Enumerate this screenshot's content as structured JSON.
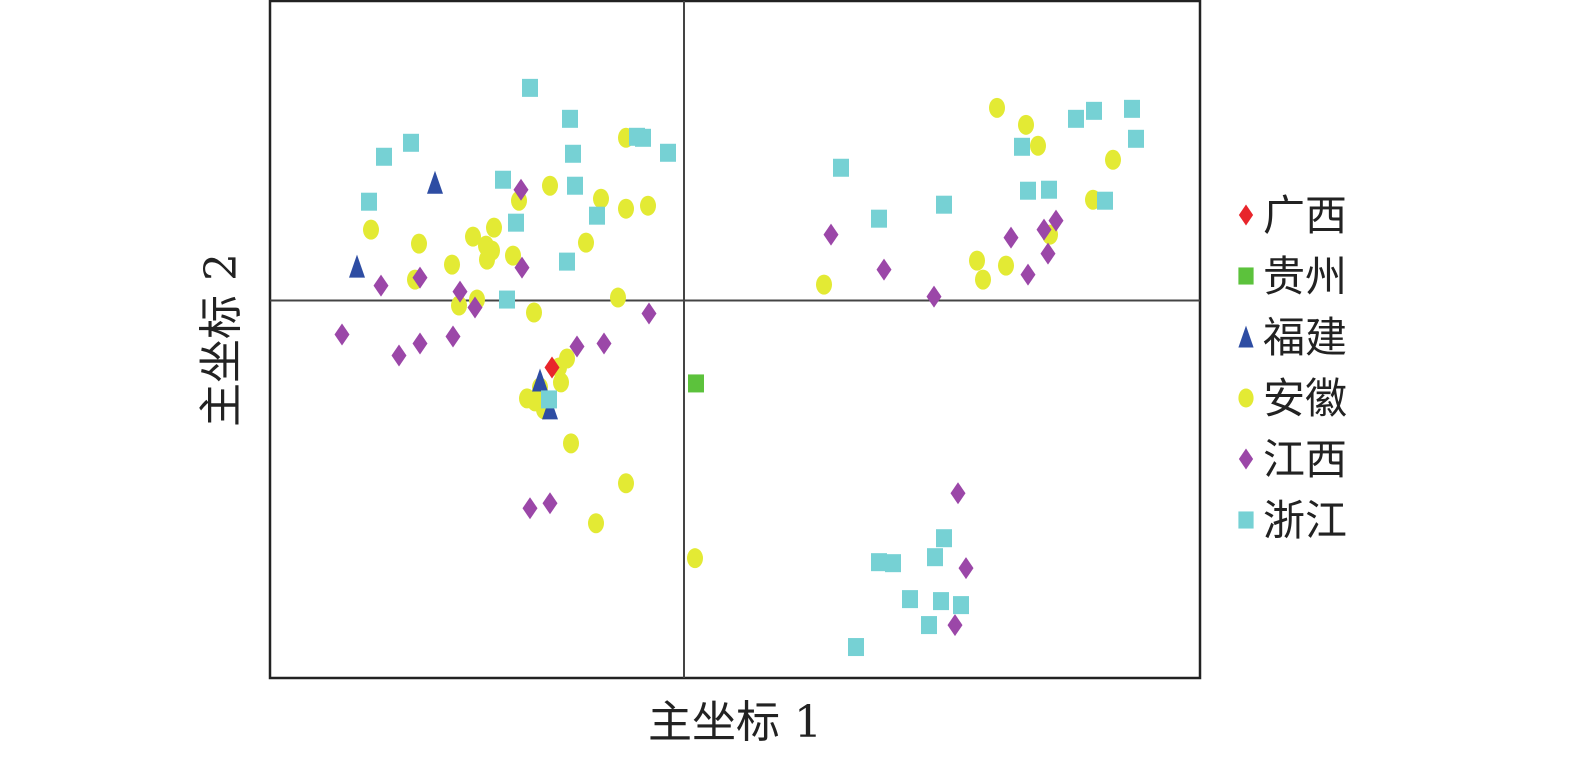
{
  "chart_data": {
    "type": "scatter",
    "title": "",
    "xlabel": "主坐标 1",
    "ylabel": "主坐标 2",
    "xlim": [
      -41.4,
      51.6
    ],
    "ylim": [
      -37.8,
      30
    ],
    "grid": false,
    "zero_lines": true,
    "legend_position": "right",
    "series": [
      {
        "name": "广西",
        "marker": "diamond",
        "color": "#e8252b",
        "points": [
          [
            -13.2,
            -6.7
          ]
        ]
      },
      {
        "name": "贵州",
        "marker": "square",
        "color": "#5cc23c",
        "points": [
          [
            1.2,
            -8.3
          ]
        ]
      },
      {
        "name": "福建",
        "marker": "triangle",
        "color": "#2e4da3",
        "points": [
          [
            -24.9,
            11.8
          ],
          [
            -32.7,
            3.4
          ],
          [
            -14.4,
            -8
          ],
          [
            -13.4,
            -10.8
          ]
        ]
      },
      {
        "name": "安徽",
        "marker": "circle",
        "color": "#e3ea34",
        "points": [
          [
            -31.3,
            7.1
          ],
          [
            -26.5,
            5.7
          ],
          [
            -26.9,
            2.1
          ],
          [
            -23.2,
            3.6
          ],
          [
            -21.1,
            6.4
          ],
          [
            -19,
            7.3
          ],
          [
            -19.8,
            5.5
          ],
          [
            -19.2,
            5
          ],
          [
            -19.7,
            4.1
          ],
          [
            -17.1,
            4.5
          ],
          [
            -16.5,
            10
          ],
          [
            -13.4,
            11.5
          ],
          [
            -8.3,
            10.2
          ],
          [
            -5.8,
            9.2
          ],
          [
            -3.6,
            9.5
          ],
          [
            -5.8,
            16.3
          ],
          [
            -9.8,
            5.8
          ],
          [
            -6.6,
            0.3
          ],
          [
            -15,
            -1.2
          ],
          [
            -20.7,
            0.1
          ],
          [
            -22.5,
            -0.5
          ],
          [
            -11.7,
            -5.8
          ],
          [
            -12.5,
            -6.7
          ],
          [
            -12.3,
            -8.2
          ],
          [
            -14.4,
            -8.7
          ],
          [
            -15.7,
            -9.8
          ],
          [
            -14.9,
            -10.1
          ],
          [
            -14,
            -10.9
          ],
          [
            -11.3,
            -14.3
          ],
          [
            -5.8,
            -18.3
          ],
          [
            -8.8,
            -22.3
          ],
          [
            1.1,
            -25.8
          ],
          [
            14,
            1.6
          ],
          [
            31.3,
            19.3
          ],
          [
            34.2,
            17.6
          ],
          [
            35.4,
            15.5
          ],
          [
            42.9,
            14.1
          ],
          [
            40.9,
            10.1
          ],
          [
            29.3,
            4
          ],
          [
            29.9,
            2.1
          ],
          [
            32.2,
            3.5
          ],
          [
            36.6,
            6.6
          ]
        ]
      },
      {
        "name": "江西",
        "marker": "diamond",
        "color": "#9b47a8",
        "points": [
          [
            -16.3,
            11.1
          ],
          [
            -16.2,
            3.3
          ],
          [
            -26.4,
            2.3
          ],
          [
            -30.3,
            1.5
          ],
          [
            -22.4,
            0.9
          ],
          [
            -20.9,
            -0.7
          ],
          [
            -34.2,
            -3.4
          ],
          [
            -28.5,
            -5.5
          ],
          [
            -26.4,
            -4.3
          ],
          [
            -23.1,
            -3.6
          ],
          [
            -10.7,
            -4.6
          ],
          [
            -8,
            -4.3
          ],
          [
            -3.5,
            -1.3
          ],
          [
            -15.4,
            -20.8
          ],
          [
            -13.4,
            -20.3
          ],
          [
            14.7,
            6.6
          ],
          [
            20,
            3.1
          ],
          [
            25,
            0.4
          ],
          [
            32.7,
            6.3
          ],
          [
            36,
            7.1
          ],
          [
            37.2,
            8
          ],
          [
            36.4,
            4.7
          ],
          [
            34.4,
            2.6
          ],
          [
            27.4,
            -19.3
          ],
          [
            28.2,
            -26.8
          ],
          [
            27.1,
            -32.5
          ]
        ]
      },
      {
        "name": "浙江",
        "marker": "square",
        "color": "#76d1d4",
        "points": [
          [
            -15.4,
            21.3
          ],
          [
            -11.4,
            18.2
          ],
          [
            -27.3,
            15.8
          ],
          [
            -30,
            14.4
          ],
          [
            -11.1,
            14.7
          ],
          [
            -4.7,
            16.4
          ],
          [
            -4.1,
            16.3
          ],
          [
            -1.6,
            14.8
          ],
          [
            -31.5,
            9.9
          ],
          [
            -18.1,
            12.1
          ],
          [
            -10.9,
            11.5
          ],
          [
            -8.7,
            8.5
          ],
          [
            -16.8,
            7.8
          ],
          [
            -11.7,
            3.9
          ],
          [
            -17.7,
            0.1
          ],
          [
            -13.5,
            -9.9
          ],
          [
            15.7,
            13.3
          ],
          [
            19.5,
            8.2
          ],
          [
            26,
            9.6
          ],
          [
            39.2,
            18.2
          ],
          [
            41,
            19
          ],
          [
            44.8,
            19.2
          ],
          [
            45.2,
            16.2
          ],
          [
            33.8,
            15.4
          ],
          [
            34.4,
            11
          ],
          [
            36.5,
            11.1
          ],
          [
            42.1,
            10
          ],
          [
            26,
            -23.8
          ],
          [
            19.5,
            -26.2
          ],
          [
            20.9,
            -26.3
          ],
          [
            25.1,
            -25.7
          ],
          [
            22.6,
            -29.9
          ],
          [
            25.7,
            -30.1
          ],
          [
            27.7,
            -30.5
          ],
          [
            24.5,
            -32.5
          ],
          [
            17.2,
            -34.7
          ]
        ]
      }
    ]
  }
}
